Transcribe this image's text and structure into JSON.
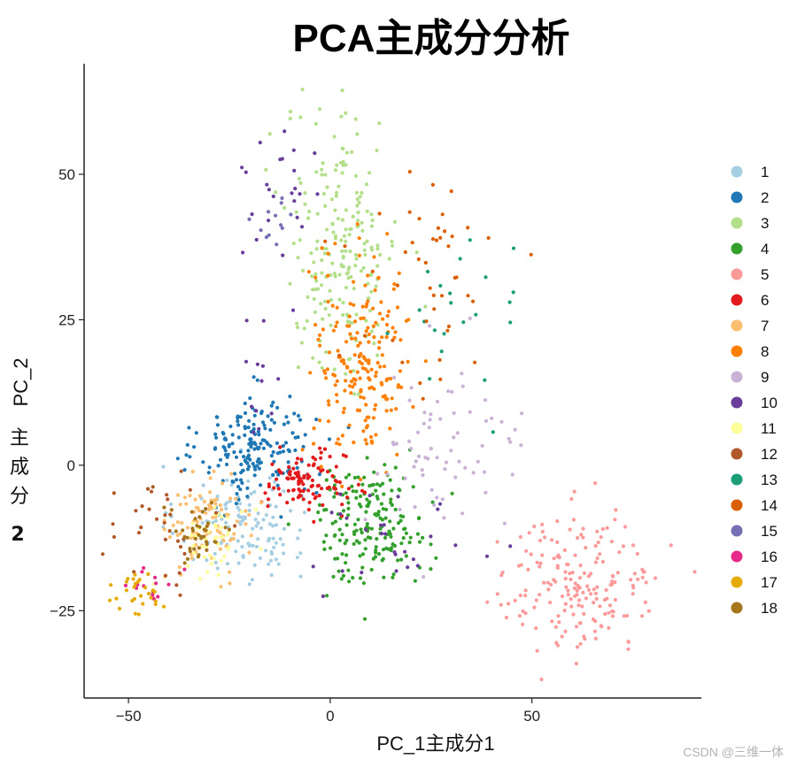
{
  "chart_data": {
    "type": "scatter",
    "title": "PCA主成分分析",
    "xlabel": "PC_1主成分1",
    "ylabel": "PC_2",
    "ylabel_extra": [
      "主",
      "成",
      "分",
      "2"
    ],
    "xlim": [
      -61,
      92
    ],
    "ylim": [
      -40,
      69
    ],
    "x_ticks": [
      -50,
      0,
      50
    ],
    "y_ticks": [
      -25,
      0,
      25,
      50
    ],
    "legend_position": "right",
    "grid": false,
    "series": [
      {
        "name": "1",
        "color": "#a6cee3",
        "clusters": [
          {
            "x": -22,
            "y": -10,
            "sx": 8,
            "sy": 5,
            "n": 130
          }
        ]
      },
      {
        "name": "2",
        "color": "#1f78b4",
        "clusters": [
          {
            "x": -18,
            "y": 3,
            "sx": 7,
            "sy": 4.5,
            "n": 190
          }
        ]
      },
      {
        "name": "3",
        "color": "#b2df8a",
        "clusters": [
          {
            "x": 3,
            "y": 38,
            "sx": 7,
            "sy": 12,
            "n": 210
          }
        ]
      },
      {
        "name": "4",
        "color": "#33a02c",
        "clusters": [
          {
            "x": 10,
            "y": -10,
            "sx": 7,
            "sy": 5,
            "n": 190
          }
        ]
      },
      {
        "name": "5",
        "color": "#fb9a99",
        "clusters": [
          {
            "x": 62,
            "y": -20,
            "sx": 10,
            "sy": 6,
            "n": 190
          }
        ]
      },
      {
        "name": "6",
        "color": "#e31a1c",
        "clusters": [
          {
            "x": -6,
            "y": -3,
            "sx": 5,
            "sy": 2.5,
            "n": 110
          }
        ]
      },
      {
        "name": "7",
        "color": "#fdbf6f",
        "clusters": [
          {
            "x": -30,
            "y": -10,
            "sx": 5,
            "sy": 4,
            "n": 90
          }
        ]
      },
      {
        "name": "8",
        "color": "#ff7f00",
        "clusters": [
          {
            "x": 8,
            "y": 18,
            "sx": 6,
            "sy": 9,
            "n": 200
          }
        ]
      },
      {
        "name": "9",
        "color": "#cab2d6",
        "clusters": [
          {
            "x": 28,
            "y": 2,
            "sx": 10,
            "sy": 7,
            "n": 70
          }
        ]
      },
      {
        "name": "10",
        "color": "#6a3d9a",
        "clusters": [
          {
            "x": -12,
            "y": 45,
            "sx": 5,
            "sy": 6,
            "n": 25
          },
          {
            "x": -18,
            "y": 15,
            "sx": 4,
            "sy": 6,
            "n": 12
          },
          {
            "x": 15,
            "y": -12,
            "sx": 12,
            "sy": 5,
            "n": 28
          }
        ]
      },
      {
        "name": "11",
        "color": "#ffff99",
        "clusters": [
          {
            "x": -28,
            "y": -12,
            "sx": 4,
            "sy": 3,
            "n": 45
          }
        ]
      },
      {
        "name": "12",
        "color": "#b15928",
        "clusters": [
          {
            "x": -42,
            "y": -12,
            "sx": 6,
            "sy": 4,
            "n": 35
          }
        ]
      },
      {
        "name": "13",
        "color": "#1b9e77",
        "clusters": [
          {
            "x": 28,
            "y": 25,
            "sx": 10,
            "sy": 10,
            "n": 22
          }
        ]
      },
      {
        "name": "14",
        "color": "#d95f02",
        "clusters": [
          {
            "x": 25,
            "y": 32,
            "sx": 10,
            "sy": 10,
            "n": 45
          }
        ]
      },
      {
        "name": "15",
        "color": "#7570b3",
        "clusters": [
          {
            "x": -14,
            "y": 42,
            "sx": 3,
            "sy": 4,
            "n": 12
          }
        ]
      },
      {
        "name": "16",
        "color": "#e7298a",
        "clusters": [
          {
            "x": -44,
            "y": -20,
            "sx": 2.5,
            "sy": 1.5,
            "n": 14
          }
        ]
      },
      {
        "name": "17",
        "color": "#e6ab02",
        "clusters": [
          {
            "x": -48,
            "y": -22,
            "sx": 4,
            "sy": 2,
            "n": 28
          }
        ]
      },
      {
        "name": "18",
        "color": "#a6761d",
        "clusters": [
          {
            "x": -33,
            "y": -12,
            "sx": 3,
            "sy": 3,
            "n": 40
          }
        ]
      }
    ]
  },
  "watermark": "CSDN @三维一体"
}
